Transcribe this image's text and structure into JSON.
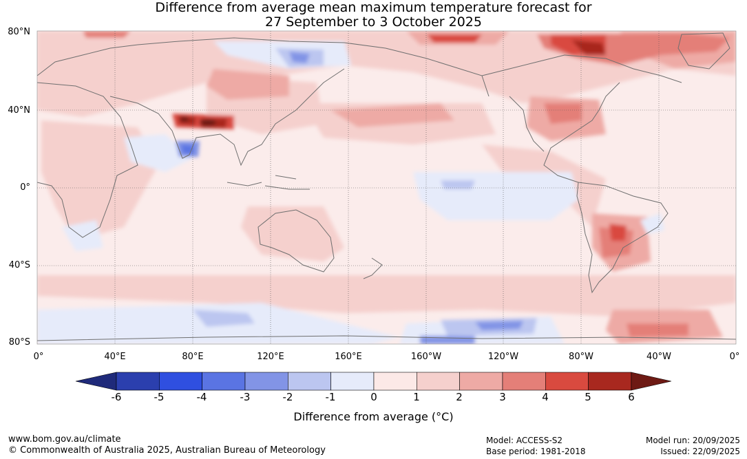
{
  "title": {
    "line1": "Difference from average mean maximum temperature forecast for",
    "line2": "27 September to 3 October 2025"
  },
  "lat_labels": [
    "80°N",
    "40°N",
    "0°",
    "40°S",
    "80°S"
  ],
  "lon_labels": [
    "0°",
    "40°E",
    "80°E",
    "120°E",
    "160°E",
    "160°W",
    "120°W",
    "80°W",
    "40°W",
    "0°"
  ],
  "colorbar": {
    "ticks": [
      "-6",
      "-5",
      "-4",
      "-3",
      "-2",
      "-1",
      "0",
      "1",
      "2",
      "3",
      "4",
      "5",
      "6"
    ],
    "low_extend": "#1f2a7a",
    "colors": [
      "#2b3fae",
      "#2f4fe0",
      "#5a74e3",
      "#8294e6",
      "#bcc6f0",
      "#e6ebfa",
      "#fce9e7",
      "#f5d0cd",
      "#eeaaa5",
      "#e47f78",
      "#d94a3f",
      "#a8281f"
    ],
    "high_extend": "#6e1a14",
    "label": "Difference from average (°C)"
  },
  "map": {
    "ocean_base": "#fbeceb",
    "coast_color": "#6f6f6f"
  },
  "footer": {
    "url": "www.bom.gov.au/climate",
    "copyright": "© Commonwealth of Australia 2025, Australian Bureau of Meteorology",
    "model": "Model: ACCESS-S2",
    "base_period": "Base period: 1981-2018",
    "model_run": "Model run: 20/09/2025",
    "issued": "Issued: 22/09/2025"
  }
}
